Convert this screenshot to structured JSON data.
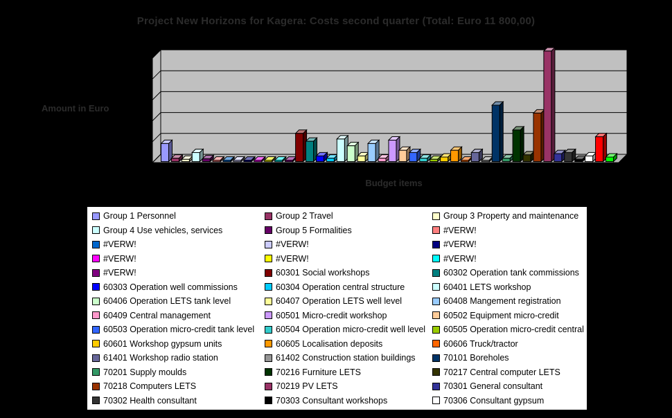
{
  "window": {
    "background_color": "#000000"
  },
  "chart_data": {
    "type": "bar",
    "projection": "3d",
    "title": "Project New Horizons for Kagera: Costs second quarter (Total: Euro 11 800,00)",
    "xlabel": "Budget items",
    "ylabel": "Amount in Euro",
    "ylim": [
      0,
      100
    ],
    "grid": true,
    "gridline_count": 4,
    "wall_color": "#C0C0C0",
    "legend_position": "bottom",
    "legend_columns": 3,
    "legend_visible_count": 42,
    "value_scale": "percent of plot height; value-axis tick labels are not visible in the screenshot",
    "series": [
      {
        "label": "Group 1 Personnel",
        "color": "#9999FF",
        "value": 16
      },
      {
        "label": "Group 2 Travel",
        "color": "#993366",
        "value": 3
      },
      {
        "label": "Group 3 Property and maintenance",
        "color": "#FFFFCC",
        "value": 2
      },
      {
        "label": "Group 4 Use vehicles, services",
        "color": "#CCFFFF",
        "value": 8
      },
      {
        "label": "Group 5 Formalities",
        "color": "#660066",
        "value": 2.5
      },
      {
        "label": "#VERW!",
        "color": "#FF8080",
        "value": 0.6
      },
      {
        "label": "#VERW!",
        "color": "#0066CC",
        "value": 0.6
      },
      {
        "label": "#VERW!",
        "color": "#CCCCFF",
        "value": 0.6
      },
      {
        "label": "#VERW!",
        "color": "#000080",
        "value": 0.6
      },
      {
        "label": "#VERW!",
        "color": "#FF00FF",
        "value": 1
      },
      {
        "label": "#VERW!",
        "color": "#FFFF00",
        "value": 1
      },
      {
        "label": "#VERW!",
        "color": "#00FFFF",
        "value": 1
      },
      {
        "label": "#VERW!",
        "color": "#800080",
        "value": 0.6
      },
      {
        "label": "60301 Social workshops",
        "color": "#800000",
        "value": 25
      },
      {
        "label": "60302 Operation tank commissions",
        "color": "#008080",
        "value": 18
      },
      {
        "label": "60303 Operation well commissions",
        "color": "#0000FF",
        "value": 5
      },
      {
        "label": "60304 Operation central structure",
        "color": "#00CCFF",
        "value": 3
      },
      {
        "label": "60401 LETS workshop",
        "color": "#CCFFFF",
        "value": 20
      },
      {
        "label": "60406 Operation LETS tank level",
        "color": "#CCFFCC",
        "value": 14
      },
      {
        "label": "60407 Operation LETS well level",
        "color": "#FFFF99",
        "value": 5
      },
      {
        "label": "60408 Mangement registration",
        "color": "#99CCFF",
        "value": 16
      },
      {
        "label": "60409 Central management",
        "color": "#FF99CC",
        "value": 3
      },
      {
        "label": "60501 Micro-credit workshop",
        "color": "#CC99FF",
        "value": 19
      },
      {
        "label": "60502 Equipment micro-credit",
        "color": "#FFCC99",
        "value": 10
      },
      {
        "label": "60503 Operation micro-credit tank level",
        "color": "#3366FF",
        "value": 8
      },
      {
        "label": "60504 Operation micro-credit well level",
        "color": "#33CCCC",
        "value": 3
      },
      {
        "label": "60505 Operation micro-credit central",
        "color": "#99CC00",
        "value": 2
      },
      {
        "label": "60601 Workshop gypsum units",
        "color": "#FFCC00",
        "value": 4
      },
      {
        "label": "60605 Localisation deposits",
        "color": "#FF9900",
        "value": 10
      },
      {
        "label": "60606 Truck/tractor",
        "color": "#FF6600",
        "value": 0.8
      },
      {
        "label": "61401 Workshop radio station",
        "color": "#666699",
        "value": 8
      },
      {
        "label": "61402 Construction station buildings",
        "color": "#969696",
        "value": 0.8
      },
      {
        "label": "70101 Boreholes",
        "color": "#003366",
        "value": 50
      },
      {
        "label": "70201 Supply moulds",
        "color": "#339966",
        "value": 3
      },
      {
        "label": "70216 Furniture LETS",
        "color": "#003300",
        "value": 28
      },
      {
        "label": "70217 Central computer LETS",
        "color": "#333300",
        "value": 6
      },
      {
        "label": "70218 Computers LETS",
        "color": "#993300",
        "value": 43
      },
      {
        "label": "70219 PV LETS",
        "color": "#993366",
        "value": 98
      },
      {
        "label": "70301 General consultant",
        "color": "#333399",
        "value": 7
      },
      {
        "label": "70302 Health consultant",
        "color": "#333333",
        "value": 8
      },
      {
        "label": "70303 Consultant workshops",
        "color": "#000000",
        "value": 2
      },
      {
        "label": "70306 Consultant gypsum",
        "color": "#FFFFFF",
        "value": 5
      },
      {
        "label": "",
        "color": "#FF0000",
        "value": 22
      },
      {
        "label": "",
        "color": "#00FF00",
        "value": 4
      }
    ]
  }
}
